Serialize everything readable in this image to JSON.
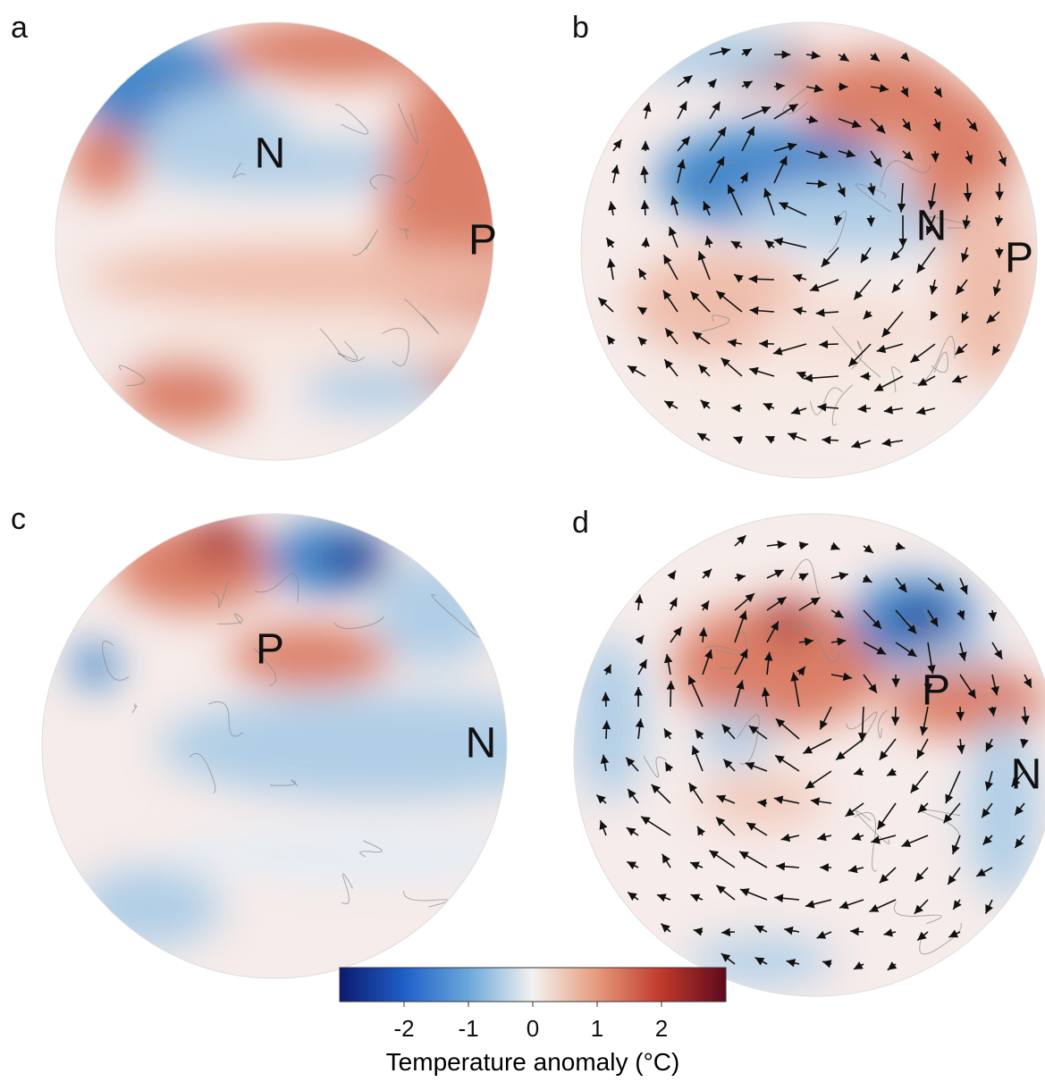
{
  "panels": [
    {
      "label": "a",
      "markers": [
        "N",
        "P"
      ]
    },
    {
      "label": "b",
      "markers": [
        "N",
        "P"
      ]
    },
    {
      "label": "c",
      "markers": [
        "P",
        "N"
      ]
    },
    {
      "label": "d",
      "markers": [
        "P",
        "N"
      ]
    }
  ],
  "colorbar": {
    "lim": [
      -3,
      3
    ],
    "ticks": [
      -2,
      -1,
      0,
      1,
      2
    ],
    "title": "Temperature anomaly (°C)",
    "colors": [
      "#0d1a6e",
      "#1f5fc8",
      "#6aa8da",
      "#f4f2f0",
      "#e59a7c",
      "#c0392b",
      "#5e0a1e"
    ]
  }
}
